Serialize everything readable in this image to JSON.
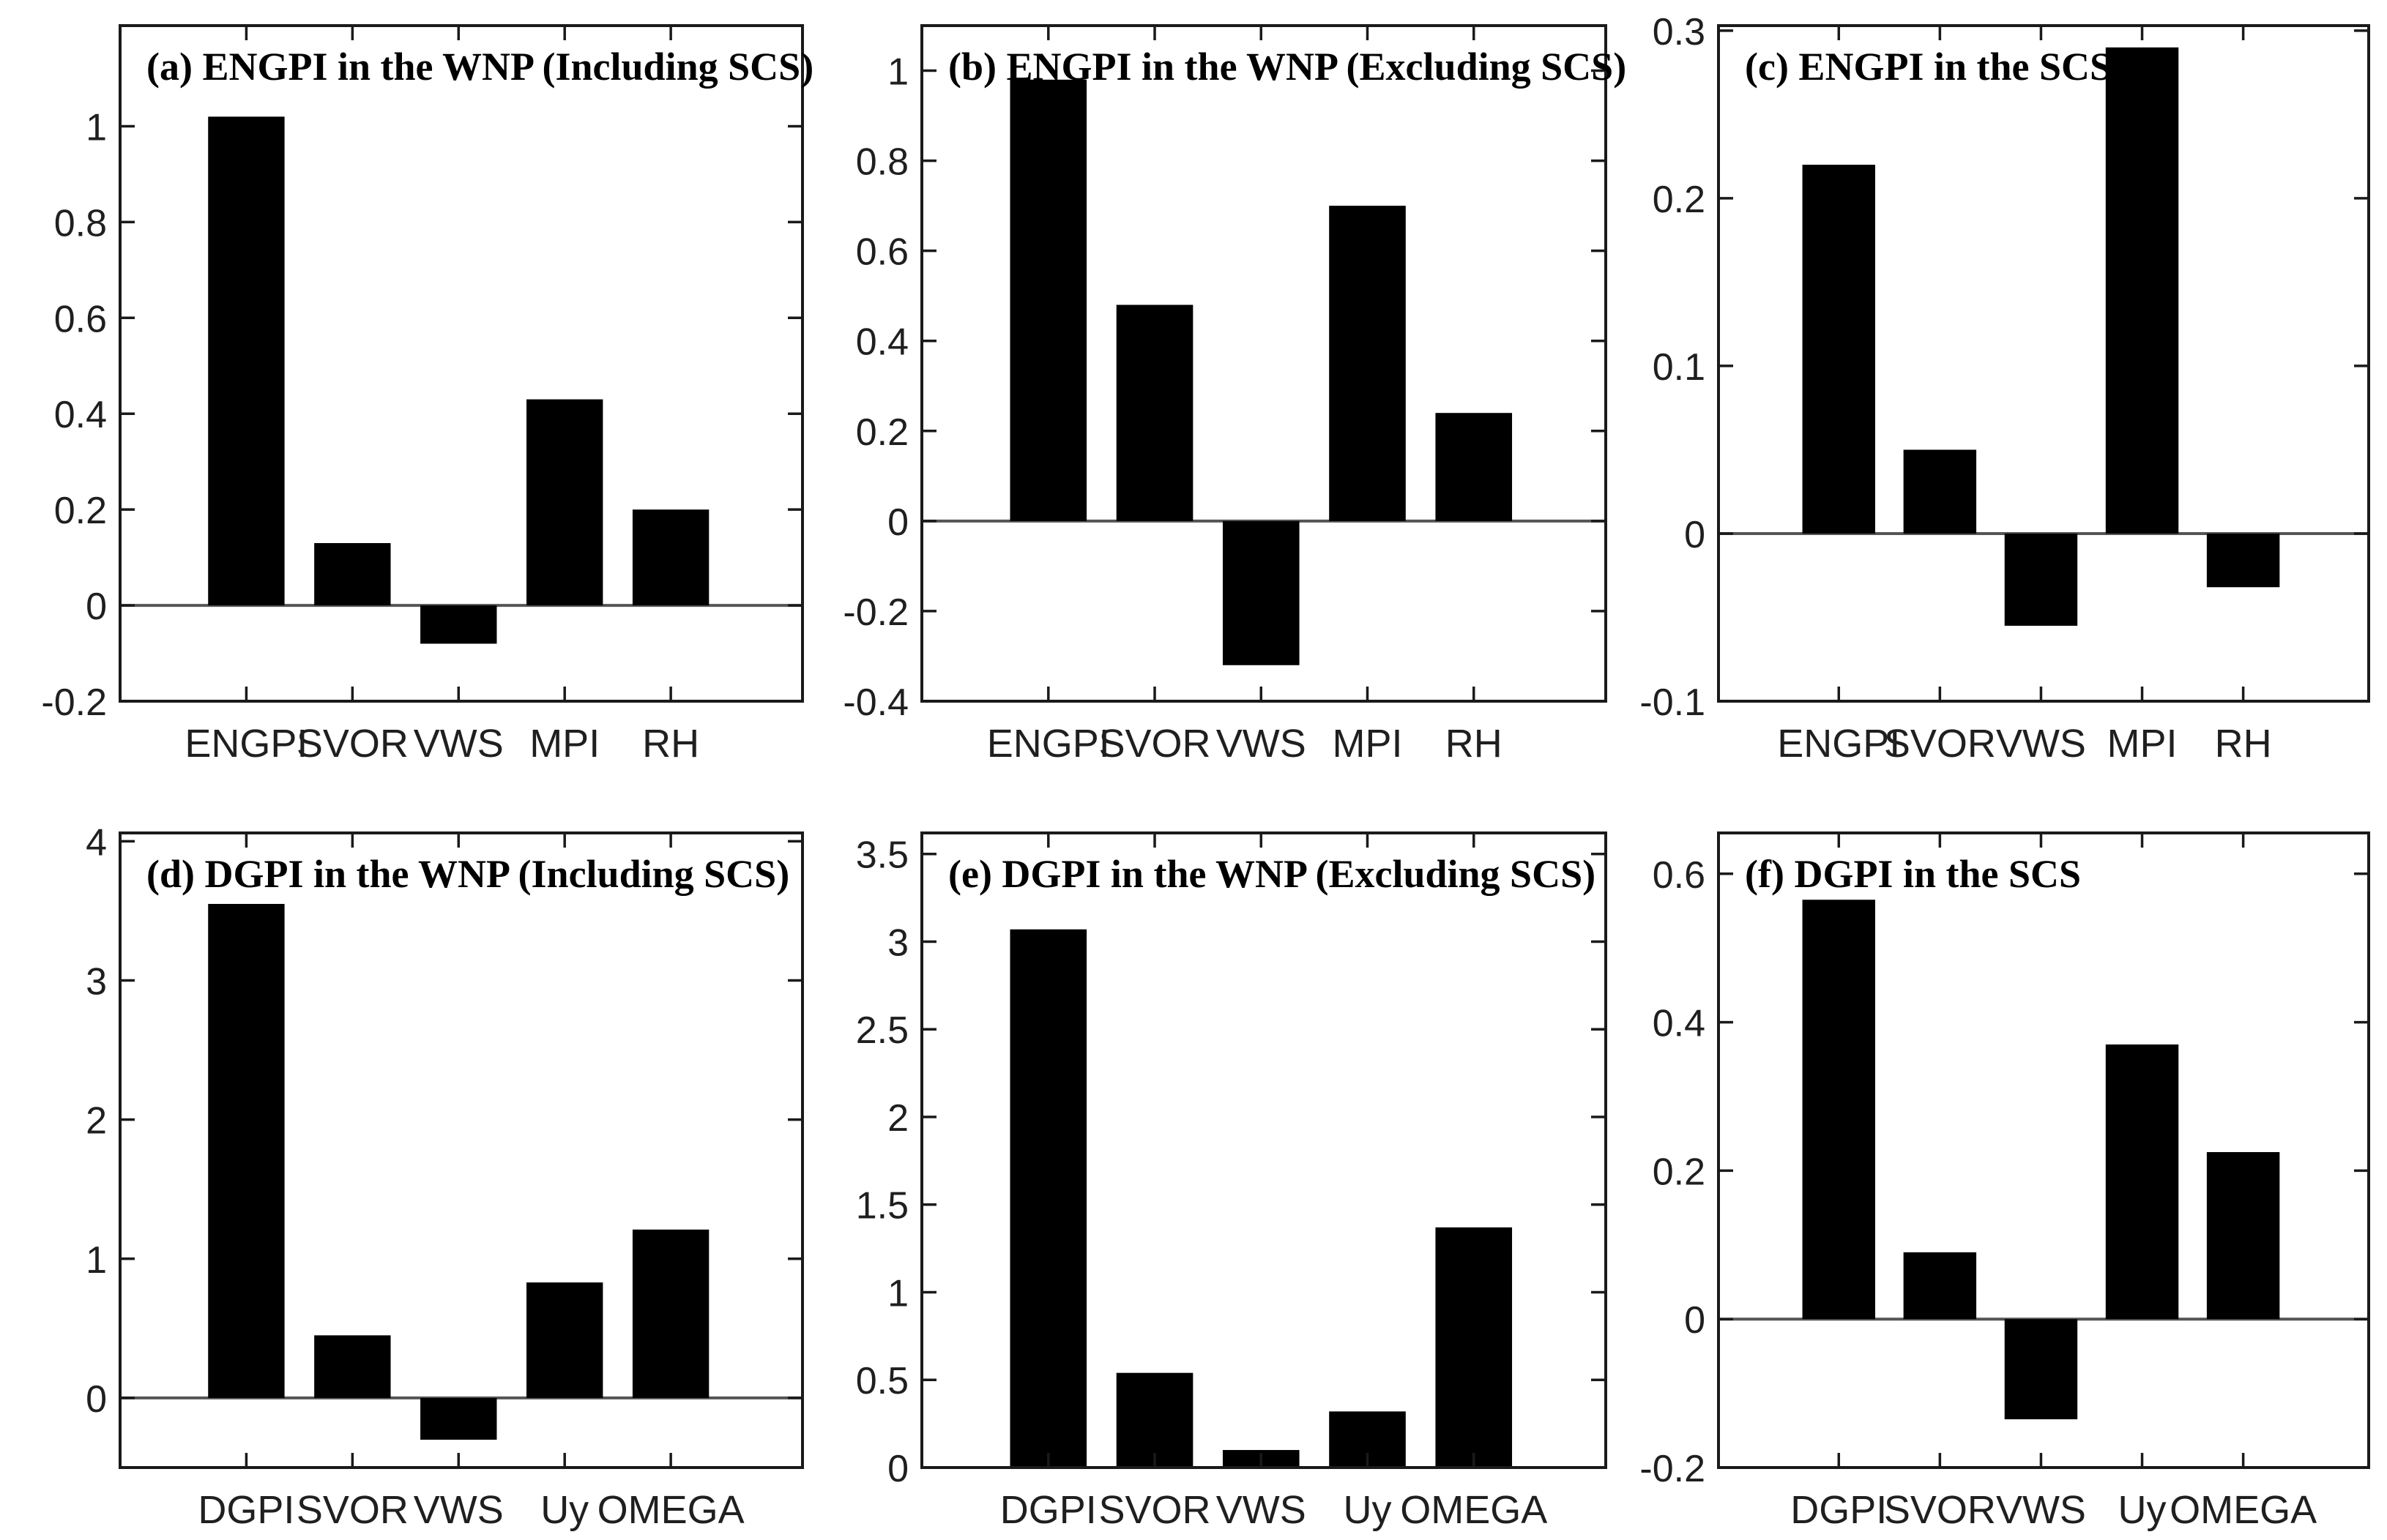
{
  "figure": {
    "description_label": "Six-panel bar chart figure: normalized contributions of genesis potential index terms",
    "colors": {
      "background": "#ffffff",
      "bar_fill": "#000000",
      "axis_stroke": "#1a1a1a",
      "zero_line": "#555555",
      "tick_label": "#1f1f1f"
    }
  },
  "chart_data": [
    {
      "type": "bar",
      "panel": "a",
      "title": "(a) ENGPI in the WNP (Including SCS)",
      "categories": [
        "ENGPI",
        "SVOR",
        "VWS",
        "MPI",
        "RH"
      ],
      "values": [
        1.02,
        0.13,
        -0.08,
        0.43,
        0.2
      ],
      "ylim": [
        -0.2,
        1.21
      ],
      "yticks": [
        {
          "value": -0.2,
          "label": "-0.2"
        },
        {
          "value": 0,
          "label": "0"
        },
        {
          "value": 0.2,
          "label": "0.2"
        },
        {
          "value": 0.4,
          "label": "0.4"
        },
        {
          "value": 0.6,
          "label": "0.6"
        },
        {
          "value": 0.8,
          "label": "0.8"
        },
        {
          "value": 1,
          "label": "1"
        }
      ],
      "grid": false,
      "legend": null
    },
    {
      "type": "bar",
      "panel": "b",
      "title": "(b) ENGPI in the WNP (Excluding SCS)",
      "categories": [
        "ENGPI",
        "SVOR",
        "VWS",
        "MPI",
        "RH"
      ],
      "values": [
        0.98,
        0.48,
        -0.32,
        0.7,
        0.24
      ],
      "ylim": [
        -0.4,
        1.1
      ],
      "yticks": [
        {
          "value": -0.4,
          "label": "-0.4"
        },
        {
          "value": -0.2,
          "label": "-0.2"
        },
        {
          "value": 0,
          "label": "0"
        },
        {
          "value": 0.2,
          "label": "0.2"
        },
        {
          "value": 0.4,
          "label": "0.4"
        },
        {
          "value": 0.6,
          "label": "0.6"
        },
        {
          "value": 0.8,
          "label": "0.8"
        },
        {
          "value": 1,
          "label": "1"
        }
      ],
      "grid": false,
      "legend": null
    },
    {
      "type": "bar",
      "panel": "c",
      "title": "(c) ENGPI in the SCS",
      "categories": [
        "ENGPI",
        "SVOR",
        "VWS",
        "MPI",
        "RH"
      ],
      "values": [
        0.22,
        0.05,
        -0.055,
        0.29,
        -0.032
      ],
      "ylim": [
        -0.1,
        0.303
      ],
      "yticks": [
        {
          "value": -0.1,
          "label": "-0.1"
        },
        {
          "value": 0,
          "label": "0"
        },
        {
          "value": 0.1,
          "label": "0.1"
        },
        {
          "value": 0.2,
          "label": "0.2"
        },
        {
          "value": 0.3,
          "label": "0.3"
        }
      ],
      "grid": false,
      "legend": null
    },
    {
      "type": "bar",
      "panel": "d",
      "title": "(d) DGPI in the WNP (Including SCS)",
      "categories": [
        "DGPI",
        "SVOR",
        "VWS",
        "Uy",
        "OMEGA"
      ],
      "values": [
        3.55,
        0.45,
        -0.3,
        0.83,
        1.21
      ],
      "ylim": [
        -0.5,
        4.06
      ],
      "yticks": [
        {
          "value": 0,
          "label": "0"
        },
        {
          "value": 1,
          "label": "1"
        },
        {
          "value": 2,
          "label": "2"
        },
        {
          "value": 3,
          "label": "3"
        },
        {
          "value": 4,
          "label": "4"
        }
      ],
      "grid": false,
      "legend": null
    },
    {
      "type": "bar",
      "panel": "e",
      "title": "(e) DGPI in the WNP (Excluding SCS)",
      "categories": [
        "DGPI",
        "SVOR",
        "VWS",
        "Uy",
        "OMEGA"
      ],
      "values": [
        3.07,
        0.54,
        0.1,
        0.32,
        1.37
      ],
      "ylim": [
        0,
        3.62
      ],
      "yticks": [
        {
          "value": 0,
          "label": "0"
        },
        {
          "value": 0.5,
          "label": "0.5"
        },
        {
          "value": 1,
          "label": "1"
        },
        {
          "value": 1.5,
          "label": "1.5"
        },
        {
          "value": 2,
          "label": "2"
        },
        {
          "value": 2.5,
          "label": "2.5"
        },
        {
          "value": 3,
          "label": "3"
        },
        {
          "value": 3.5,
          "label": "3.5"
        }
      ],
      "grid": false,
      "legend": null
    },
    {
      "type": "bar",
      "panel": "f",
      "title": "(f) DGPI in the SCS",
      "categories": [
        "DGPI",
        "SVOR",
        "VWS",
        "Uy",
        "OMEGA"
      ],
      "values": [
        0.565,
        0.09,
        -0.135,
        0.37,
        0.225
      ],
      "ylim": [
        -0.2,
        0.655
      ],
      "yticks": [
        {
          "value": -0.2,
          "label": "-0.2"
        },
        {
          "value": 0,
          "label": "0"
        },
        {
          "value": 0.2,
          "label": "0.2"
        },
        {
          "value": 0.4,
          "label": "0.4"
        },
        {
          "value": 0.6,
          "label": "0.6"
        }
      ],
      "grid": false,
      "legend": null
    }
  ]
}
